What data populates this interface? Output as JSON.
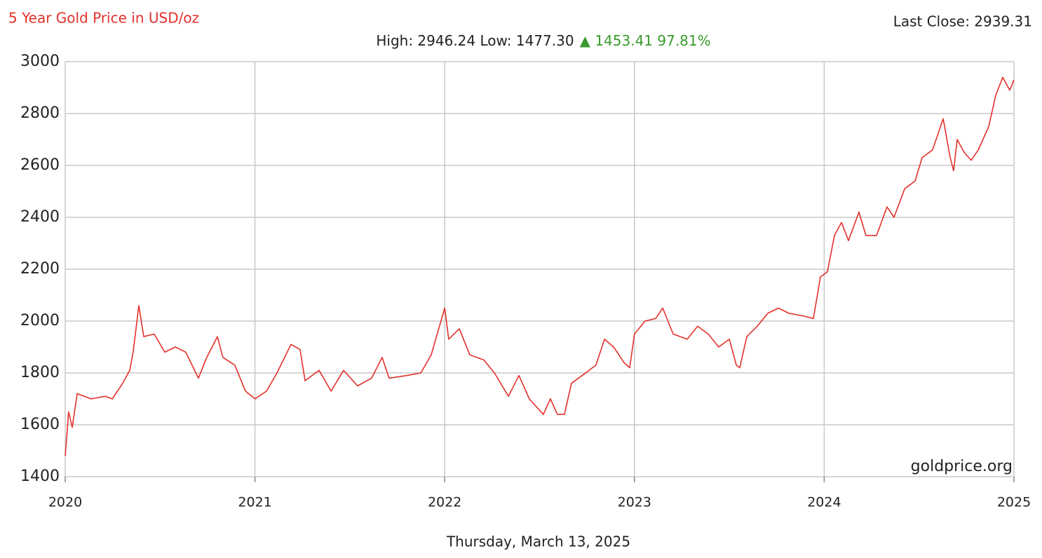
{
  "chart_data": {
    "type": "line",
    "title": "5 Year Gold Price in USD/oz",
    "last_close": "Last Close: 2939.31",
    "high_low": "High: 2946.24 Low: 1477.30",
    "change": "▲ 1453.41 97.81%",
    "source": "goldprice.org",
    "date": "Thursday, March 13, 2025",
    "color": "#e3312b",
    "grid": true,
    "xlim": [
      2020,
      2025
    ],
    "xticks": [
      2020,
      2021,
      2022,
      2023,
      2024,
      2025
    ],
    "ylim": [
      1400,
      3000
    ],
    "yticks": [
      1400,
      1600,
      1800,
      2000,
      2200,
      2400,
      2600,
      2800,
      3000
    ],
    "x": [
      2020.0,
      2020.018,
      2020.037,
      2020.063,
      2020.137,
      2020.211,
      2020.248,
      2020.303,
      2020.34,
      2020.358,
      2020.388,
      2020.414,
      2020.469,
      2020.525,
      2020.58,
      2020.635,
      2020.702,
      2020.746,
      2020.802,
      2020.831,
      2020.894,
      2020.95,
      2021.0,
      2021.061,
      2021.116,
      2021.19,
      2021.238,
      2021.264,
      2021.338,
      2021.401,
      2021.467,
      2021.541,
      2021.615,
      2021.67,
      2021.707,
      2021.8,
      2021.874,
      2021.929,
      2022.0,
      2022.021,
      2022.077,
      2022.132,
      2022.206,
      2022.262,
      2022.336,
      2022.391,
      2022.446,
      2022.52,
      2022.557,
      2022.594,
      2022.631,
      2022.668,
      2022.724,
      2022.797,
      2022.842,
      2022.89,
      2022.945,
      2022.975,
      2023.0,
      2023.056,
      2023.112,
      2023.149,
      2023.204,
      2023.278,
      2023.333,
      2023.389,
      2023.444,
      2023.5,
      2023.537,
      2023.555,
      2023.592,
      2023.647,
      2023.703,
      2023.758,
      2023.814,
      2023.888,
      2023.943,
      2023.98,
      2024.017,
      2024.054,
      2024.091,
      2024.128,
      2024.183,
      2024.22,
      2024.276,
      2024.331,
      2024.368,
      2024.424,
      2024.479,
      2024.516,
      2024.571,
      2024.627,
      2024.664,
      2024.682,
      2024.701,
      2024.738,
      2024.775,
      2024.812,
      2024.867,
      2024.904,
      2024.941,
      2024.978,
      2025.0
    ],
    "values": [
      1480,
      1650,
      1590,
      1720,
      1700,
      1710,
      1700,
      1760,
      1810,
      1880,
      2060,
      1940,
      1950,
      1880,
      1900,
      1880,
      1780,
      1860,
      1940,
      1860,
      1830,
      1730,
      1700,
      1730,
      1800,
      1910,
      1890,
      1770,
      1810,
      1730,
      1810,
      1750,
      1780,
      1860,
      1780,
      1790,
      1800,
      1870,
      2050,
      1930,
      1970,
      1870,
      1850,
      1800,
      1710,
      1790,
      1700,
      1640,
      1700,
      1640,
      1640,
      1760,
      1790,
      1830,
      1930,
      1900,
      1840,
      1820,
      1950,
      2000,
      2010,
      2050,
      1950,
      1930,
      1980,
      1950,
      1900,
      1930,
      1830,
      1820,
      1940,
      1980,
      2030,
      2050,
      2030,
      2020,
      2010,
      2170,
      2190,
      2330,
      2380,
      2310,
      2420,
      2330,
      2330,
      2440,
      2400,
      2510,
      2540,
      2630,
      2660,
      2780,
      2630,
      2580,
      2700,
      2650,
      2620,
      2660,
      2750,
      2870,
      2940,
      2890,
      2930
    ]
  }
}
